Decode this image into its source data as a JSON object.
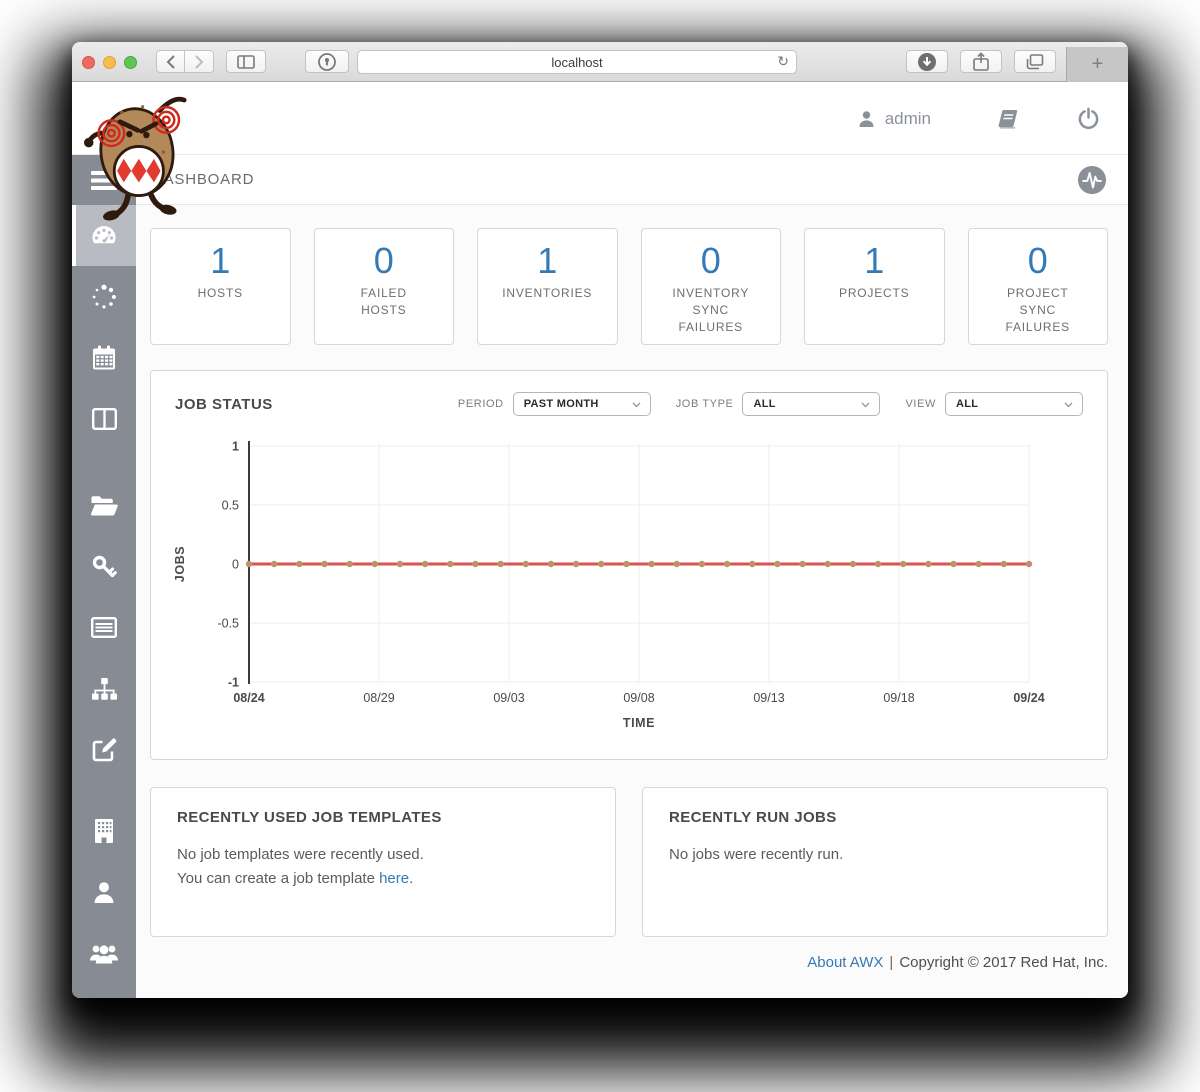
{
  "browser": {
    "url": "localhost",
    "new_tab_label": "+",
    "controls": [
      "close",
      "minimize",
      "zoom",
      "back",
      "forward",
      "sidebar",
      "onepassword",
      "reload",
      "downloads",
      "share",
      "tab-overview",
      "new-tab"
    ]
  },
  "header": {
    "user": "admin",
    "icons": [
      "user-icon",
      "docs-book-icon",
      "logout-power-icon"
    ]
  },
  "nav": {
    "title": "DASHBOARD",
    "activity_icon": "activity-stream-icon"
  },
  "sidebar": {
    "items": [
      {
        "name": "menu",
        "icon": "hamburger-icon",
        "active": false
      },
      {
        "name": "dashboard",
        "icon": "tachometer-icon",
        "active": true
      },
      {
        "name": "jobs",
        "icon": "spinner-icon",
        "active": false
      },
      {
        "name": "schedules",
        "icon": "calendar-icon",
        "active": false
      },
      {
        "name": "portal-mode",
        "icon": "columns-icon",
        "active": false
      },
      {
        "name": "projects",
        "icon": "folder-open-icon",
        "active": false
      },
      {
        "name": "credentials",
        "icon": "key-icon",
        "active": false
      },
      {
        "name": "inventory-scripts",
        "icon": "list-icon",
        "active": false
      },
      {
        "name": "inventories",
        "icon": "sitemap-icon",
        "active": false
      },
      {
        "name": "templates",
        "icon": "pencil-square-icon",
        "active": false
      },
      {
        "name": "organizations",
        "icon": "building-icon",
        "active": false
      },
      {
        "name": "users",
        "icon": "user-icon",
        "active": false
      },
      {
        "name": "teams",
        "icon": "users-icon",
        "active": false
      }
    ]
  },
  "cards": [
    {
      "value": "1",
      "label": "HOSTS"
    },
    {
      "value": "0",
      "label": "FAILED HOSTS"
    },
    {
      "value": "1",
      "label": "INVENTORIES"
    },
    {
      "value": "0",
      "label": "INVENTORY SYNC FAILURES"
    },
    {
      "value": "1",
      "label": "PROJECTS"
    },
    {
      "value": "0",
      "label": "PROJECT SYNC FAILURES"
    }
  ],
  "job_status": {
    "title": "JOB STATUS",
    "filters": [
      {
        "label": "PERIOD",
        "value": "PAST MONTH"
      },
      {
        "label": "JOB TYPE",
        "value": "ALL"
      },
      {
        "label": "VIEW",
        "value": "ALL"
      }
    ]
  },
  "chart_data": {
    "type": "line",
    "title": "JOB STATUS",
    "xlabel": "TIME",
    "ylabel": "JOBS",
    "ylim": [
      -1,
      1
    ],
    "yticks": [
      1,
      0.5,
      0,
      -0.5,
      -1
    ],
    "xticks": [
      "08/24",
      "08/29",
      "09/03",
      "09/08",
      "09/13",
      "09/18",
      "09/24"
    ],
    "grid": true,
    "legend": false,
    "series": [
      {
        "name": "JOBS",
        "color": "#d9534f",
        "marker_color": "#bd9169",
        "values": [
          0,
          0,
          0,
          0,
          0,
          0,
          0,
          0,
          0,
          0,
          0,
          0,
          0,
          0,
          0,
          0,
          0,
          0,
          0,
          0,
          0,
          0,
          0,
          0,
          0,
          0,
          0,
          0,
          0,
          0,
          0,
          0
        ]
      }
    ]
  },
  "panels": [
    {
      "title": "RECENTLY USED JOB TEMPLATES",
      "line1": "No job templates were recently used.",
      "line2_prefix": "You can create a job template ",
      "line2_link": "here",
      "line2_suffix": "."
    },
    {
      "title": "RECENTLY RUN JOBS",
      "line1": "No jobs were recently run."
    }
  ],
  "footer": {
    "about_link": "About AWX",
    "separator": "|",
    "copyright": "Copyright © 2017 Red Hat, Inc."
  },
  "colors": {
    "accent_blue": "#337ab7",
    "chart_line_red": "#d9534f",
    "chart_marker_tan": "#bd9169",
    "sidebar_gray": "#868b94"
  }
}
